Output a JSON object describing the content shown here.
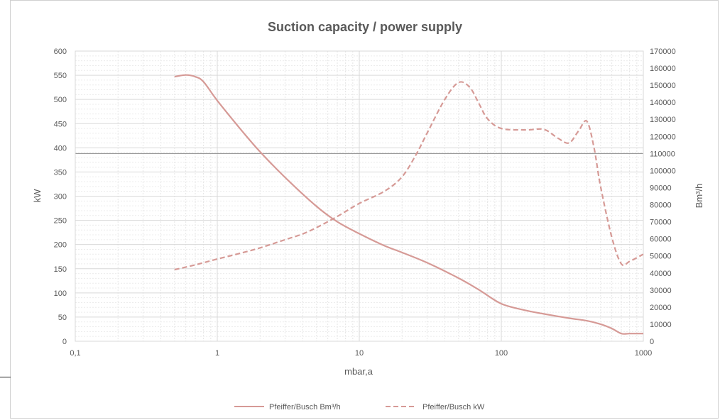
{
  "chart_data": {
    "type": "line",
    "title": "Suction capacity / power supply",
    "xlabel": "mbar,a",
    "ylabel_left": "kW",
    "ylabel_right": "Bm³/h",
    "x_scale": "log",
    "xlim": [
      0.1,
      1000
    ],
    "x_ticks": [
      {
        "value": 0.1,
        "label": "0,1"
      },
      {
        "value": 1,
        "label": "1"
      },
      {
        "value": 10,
        "label": "10"
      },
      {
        "value": 100,
        "label": "100"
      },
      {
        "value": 1000,
        "label": "1000"
      }
    ],
    "ylim_left": [
      0,
      600
    ],
    "y_ticks_left": [
      "0",
      "50",
      "100",
      "150",
      "200",
      "250",
      "300",
      "350",
      "400",
      "450",
      "500",
      "550",
      "600"
    ],
    "ylim_right": [
      0,
      170000
    ],
    "y_ticks_right": [
      "0",
      "10000",
      "20000",
      "30000",
      "40000",
      "50000",
      "60000",
      "70000",
      "80000",
      "90000",
      "100000",
      "110000",
      "120000",
      "130000",
      "140000",
      "150000",
      "160000",
      "170000"
    ],
    "grid": true,
    "legend_position": "bottom",
    "reference_line_right": 110000,
    "series": [
      {
        "name": "Pfeiffer/Busch Bm³/h",
        "axis": "right",
        "line_style": "solid",
        "color": "#d69a96",
        "x": [
          0.5,
          0.6,
          0.7,
          0.8,
          1,
          1.5,
          2,
          3,
          5,
          7,
          10,
          15,
          20,
          30,
          50,
          70,
          100,
          150,
          200,
          300,
          400,
          500,
          600,
          700,
          800,
          1000
        ],
        "y": [
          155000,
          156000,
          155000,
          152000,
          141000,
          123000,
          111000,
          96000,
          79000,
          70000,
          63000,
          56000,
          52000,
          46000,
          37000,
          30000,
          22000,
          18000,
          16000,
          13500,
          12000,
          10000,
          7500,
          4500,
          4500,
          4500
        ]
      },
      {
        "name": "Pfeiffer/Busch kW",
        "axis": "left",
        "line_style": "dashed",
        "color": "#d69a96",
        "x": [
          0.5,
          0.7,
          1,
          1.5,
          2,
          3,
          4,
          5,
          7,
          10,
          15,
          20,
          25,
          30,
          40,
          50,
          60,
          70,
          80,
          100,
          150,
          200,
          250,
          300,
          350,
          400,
          450,
          500,
          600,
          700,
          800,
          1000
        ],
        "y": [
          148,
          158,
          170,
          183,
          193,
          210,
          222,
          235,
          258,
          285,
          310,
          340,
          385,
          430,
          500,
          535,
          525,
          490,
          460,
          440,
          437,
          438,
          420,
          410,
          435,
          455,
          400,
          320,
          215,
          160,
          165,
          180
        ]
      }
    ]
  }
}
